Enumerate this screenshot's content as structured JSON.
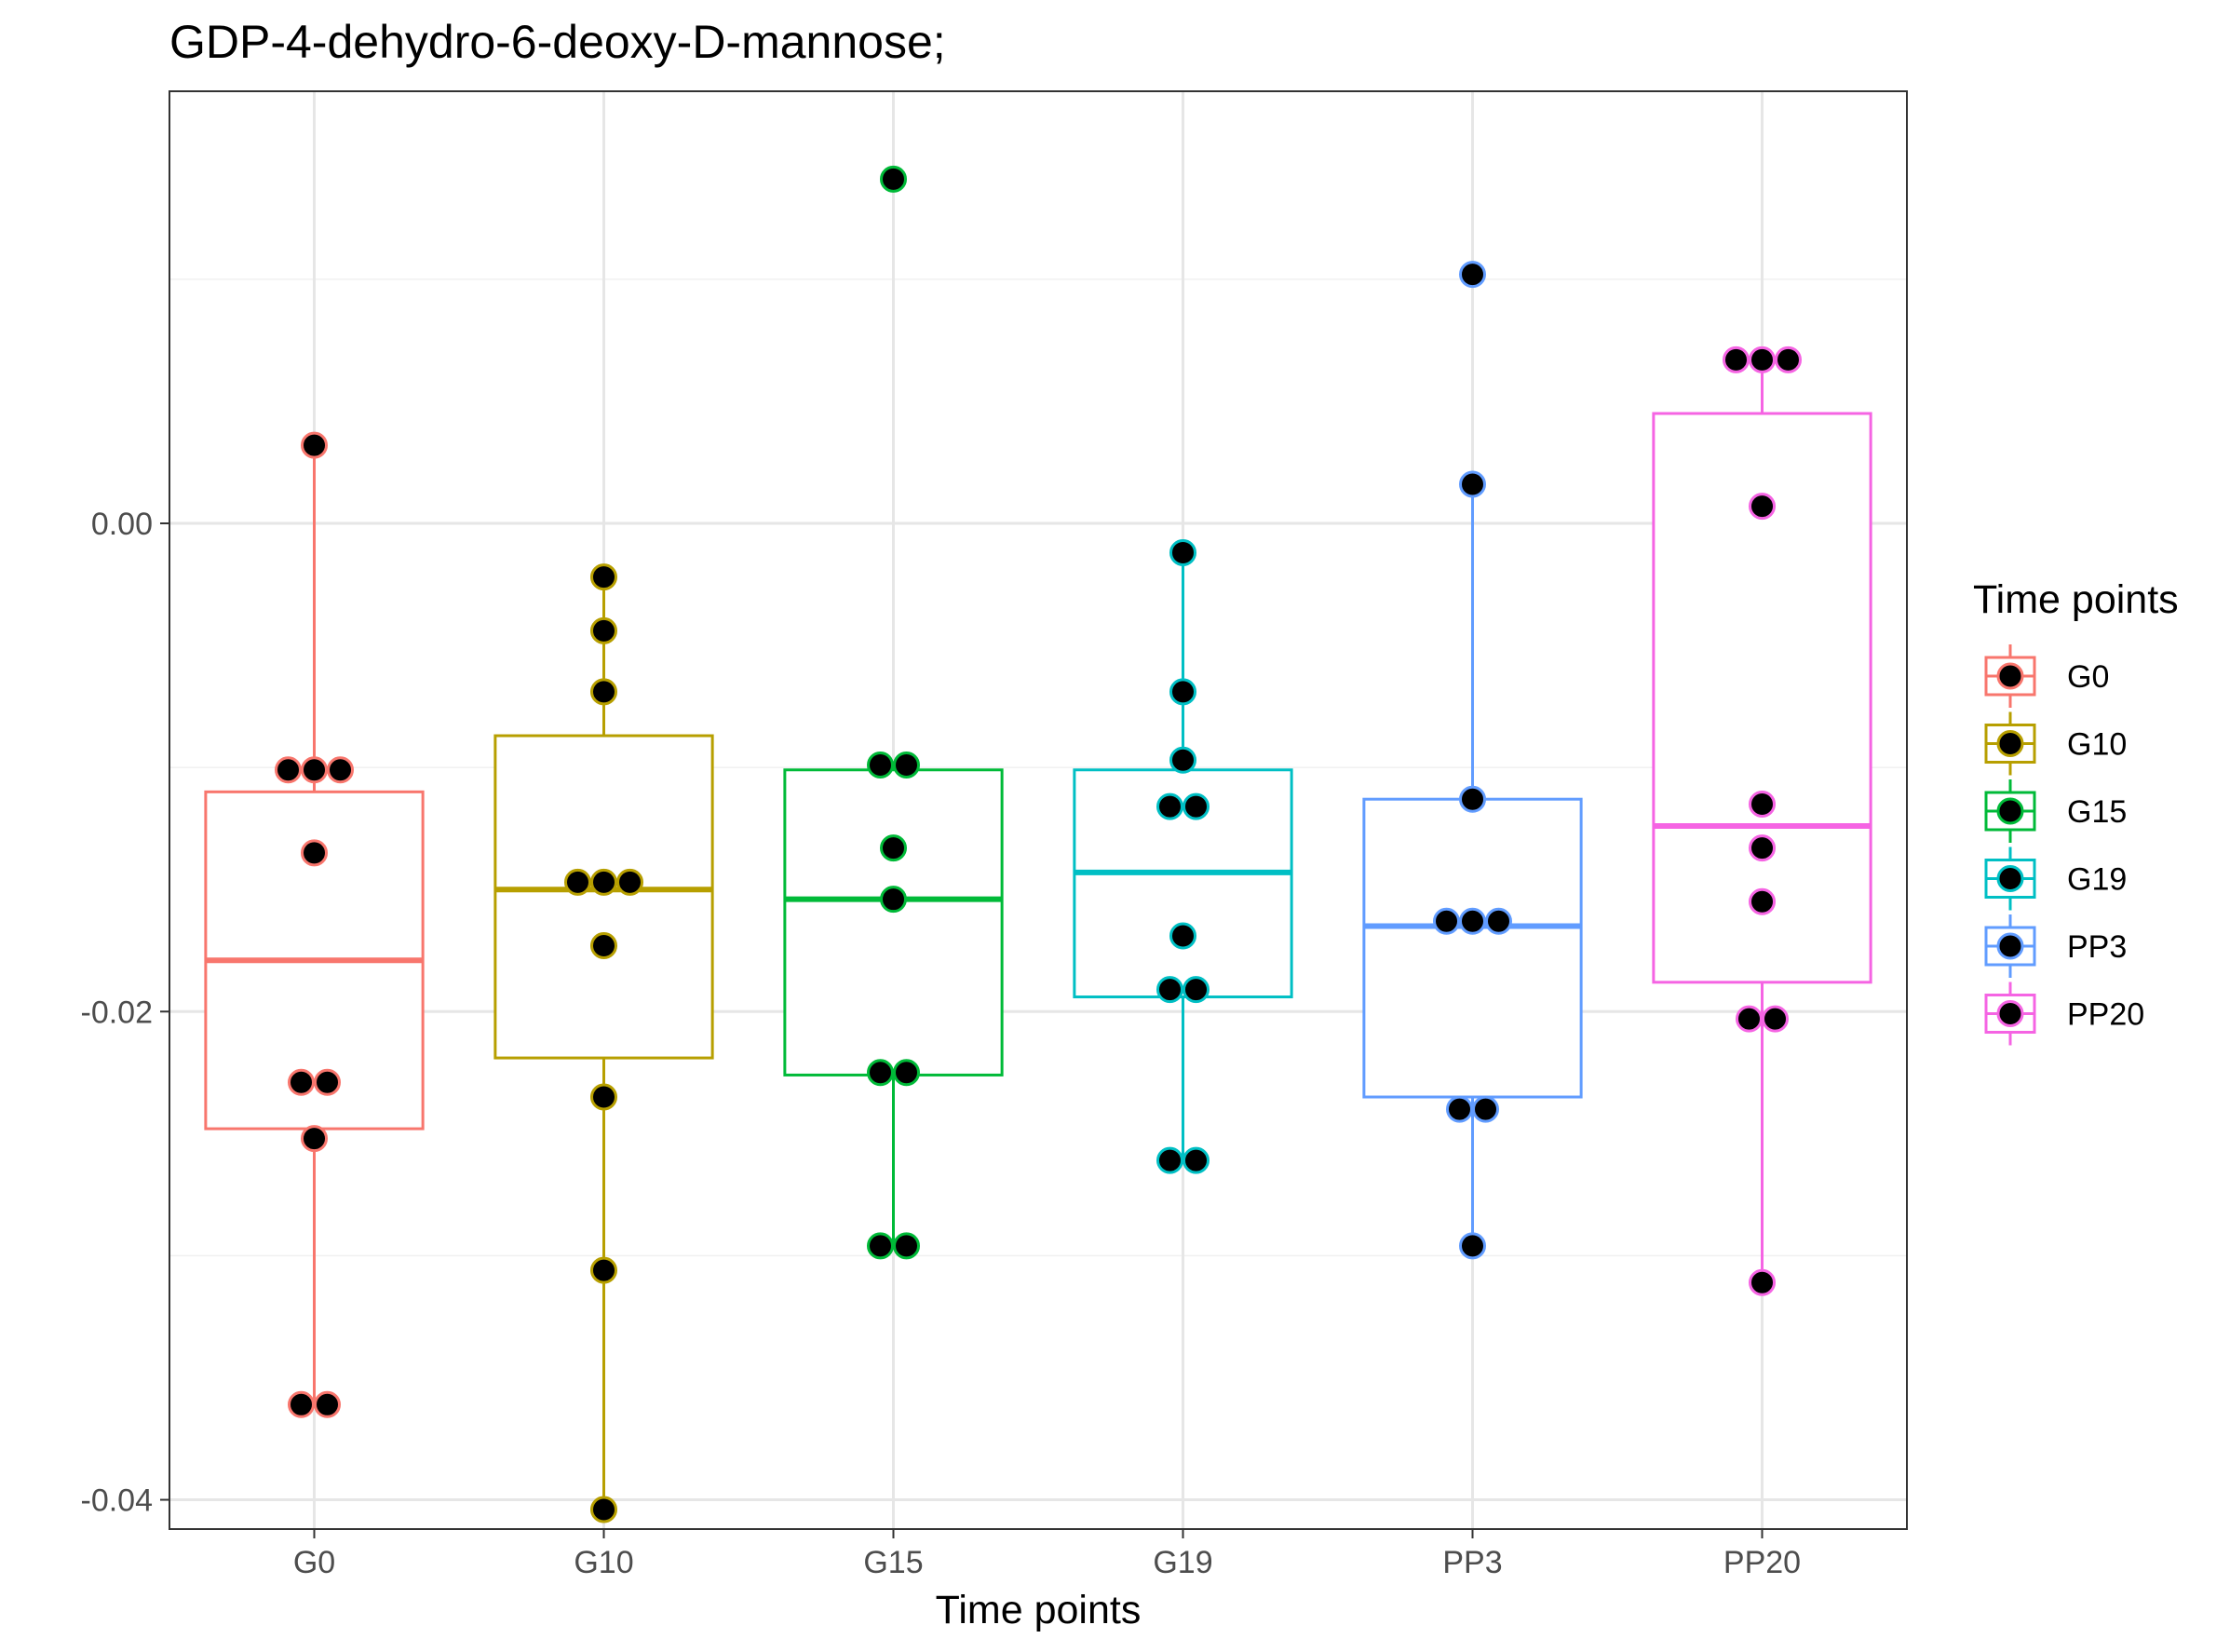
{
  "chart_data": {
    "type": "box",
    "title": "GDP-4-dehydro-6-deoxy-D-mannose;",
    "xlabel": "Time points",
    "ylabel": "",
    "categories": [
      "G0",
      "G10",
      "G15",
      "G19",
      "PP3",
      "PP20"
    ],
    "ylim": [
      -0.0412,
      0.0177
    ],
    "yticks": [
      0.0,
      -0.02,
      -0.04
    ],
    "ytick_labels": [
      "0.00",
      "-0.02",
      "-0.04"
    ],
    "grid": true,
    "legend": {
      "title": "Time points",
      "position": "right"
    },
    "colors": [
      "#F8766D",
      "#B79F00",
      "#00BA38",
      "#00BFC4",
      "#619CFF",
      "#F564E3"
    ],
    "point_color": "#000000",
    "boxes": [
      {
        "name": "G0",
        "q1": -0.0248,
        "median": -0.0179,
        "q3": -0.011,
        "whisker_low": -0.0361,
        "whisker_high": 0.0032
      },
      {
        "name": "G10",
        "q1": -0.0219,
        "median": -0.015,
        "q3": -0.0087,
        "whisker_low": -0.0404,
        "whisker_high": -0.0022
      },
      {
        "name": "G15",
        "q1": -0.0226,
        "median": -0.0154,
        "q3": -0.0101,
        "whisker_low": -0.0296,
        "whisker_high": -0.0101
      },
      {
        "name": "G19",
        "q1": -0.0194,
        "median": -0.0143,
        "q3": -0.0101,
        "whisker_low": -0.0261,
        "whisker_high": -0.0012
      },
      {
        "name": "PP3",
        "q1": -0.0235,
        "median": -0.0165,
        "q3": -0.0113,
        "whisker_low": -0.0296,
        "whisker_high": 0.0016
      },
      {
        "name": "PP20",
        "q1": -0.0188,
        "median": -0.0124,
        "q3": 0.0045,
        "whisker_low": -0.0311,
        "whisker_high": 0.0066
      }
    ],
    "points": [
      {
        "category": "G0",
        "values": [
          0.0032,
          -0.0101,
          -0.0101,
          -0.0101,
          -0.0135,
          -0.0229,
          -0.0229,
          -0.0252,
          -0.0361,
          -0.0361
        ]
      },
      {
        "category": "G10",
        "values": [
          -0.0022,
          -0.0044,
          -0.0069,
          -0.0147,
          -0.0147,
          -0.0147,
          -0.0173,
          -0.0235,
          -0.0306,
          -0.0404
        ]
      },
      {
        "category": "G15",
        "values": [
          0.0141,
          -0.0099,
          -0.0099,
          -0.0133,
          -0.0154,
          -0.0225,
          -0.0225,
          -0.0296,
          -0.0296
        ]
      },
      {
        "category": "G19",
        "values": [
          -0.0012,
          -0.0069,
          -0.0097,
          -0.0116,
          -0.0116,
          -0.0169,
          -0.0191,
          -0.0191,
          -0.0261,
          -0.0261
        ]
      },
      {
        "category": "PP3",
        "values": [
          0.0102,
          0.0016,
          -0.0113,
          -0.0163,
          -0.0163,
          -0.0163,
          -0.024,
          -0.024,
          -0.0296
        ]
      },
      {
        "category": "PP20",
        "values": [
          0.0067,
          0.0067,
          0.0067,
          0.0007,
          -0.0115,
          -0.0133,
          -0.0155,
          -0.0203,
          -0.0203,
          -0.0311
        ]
      }
    ]
  }
}
